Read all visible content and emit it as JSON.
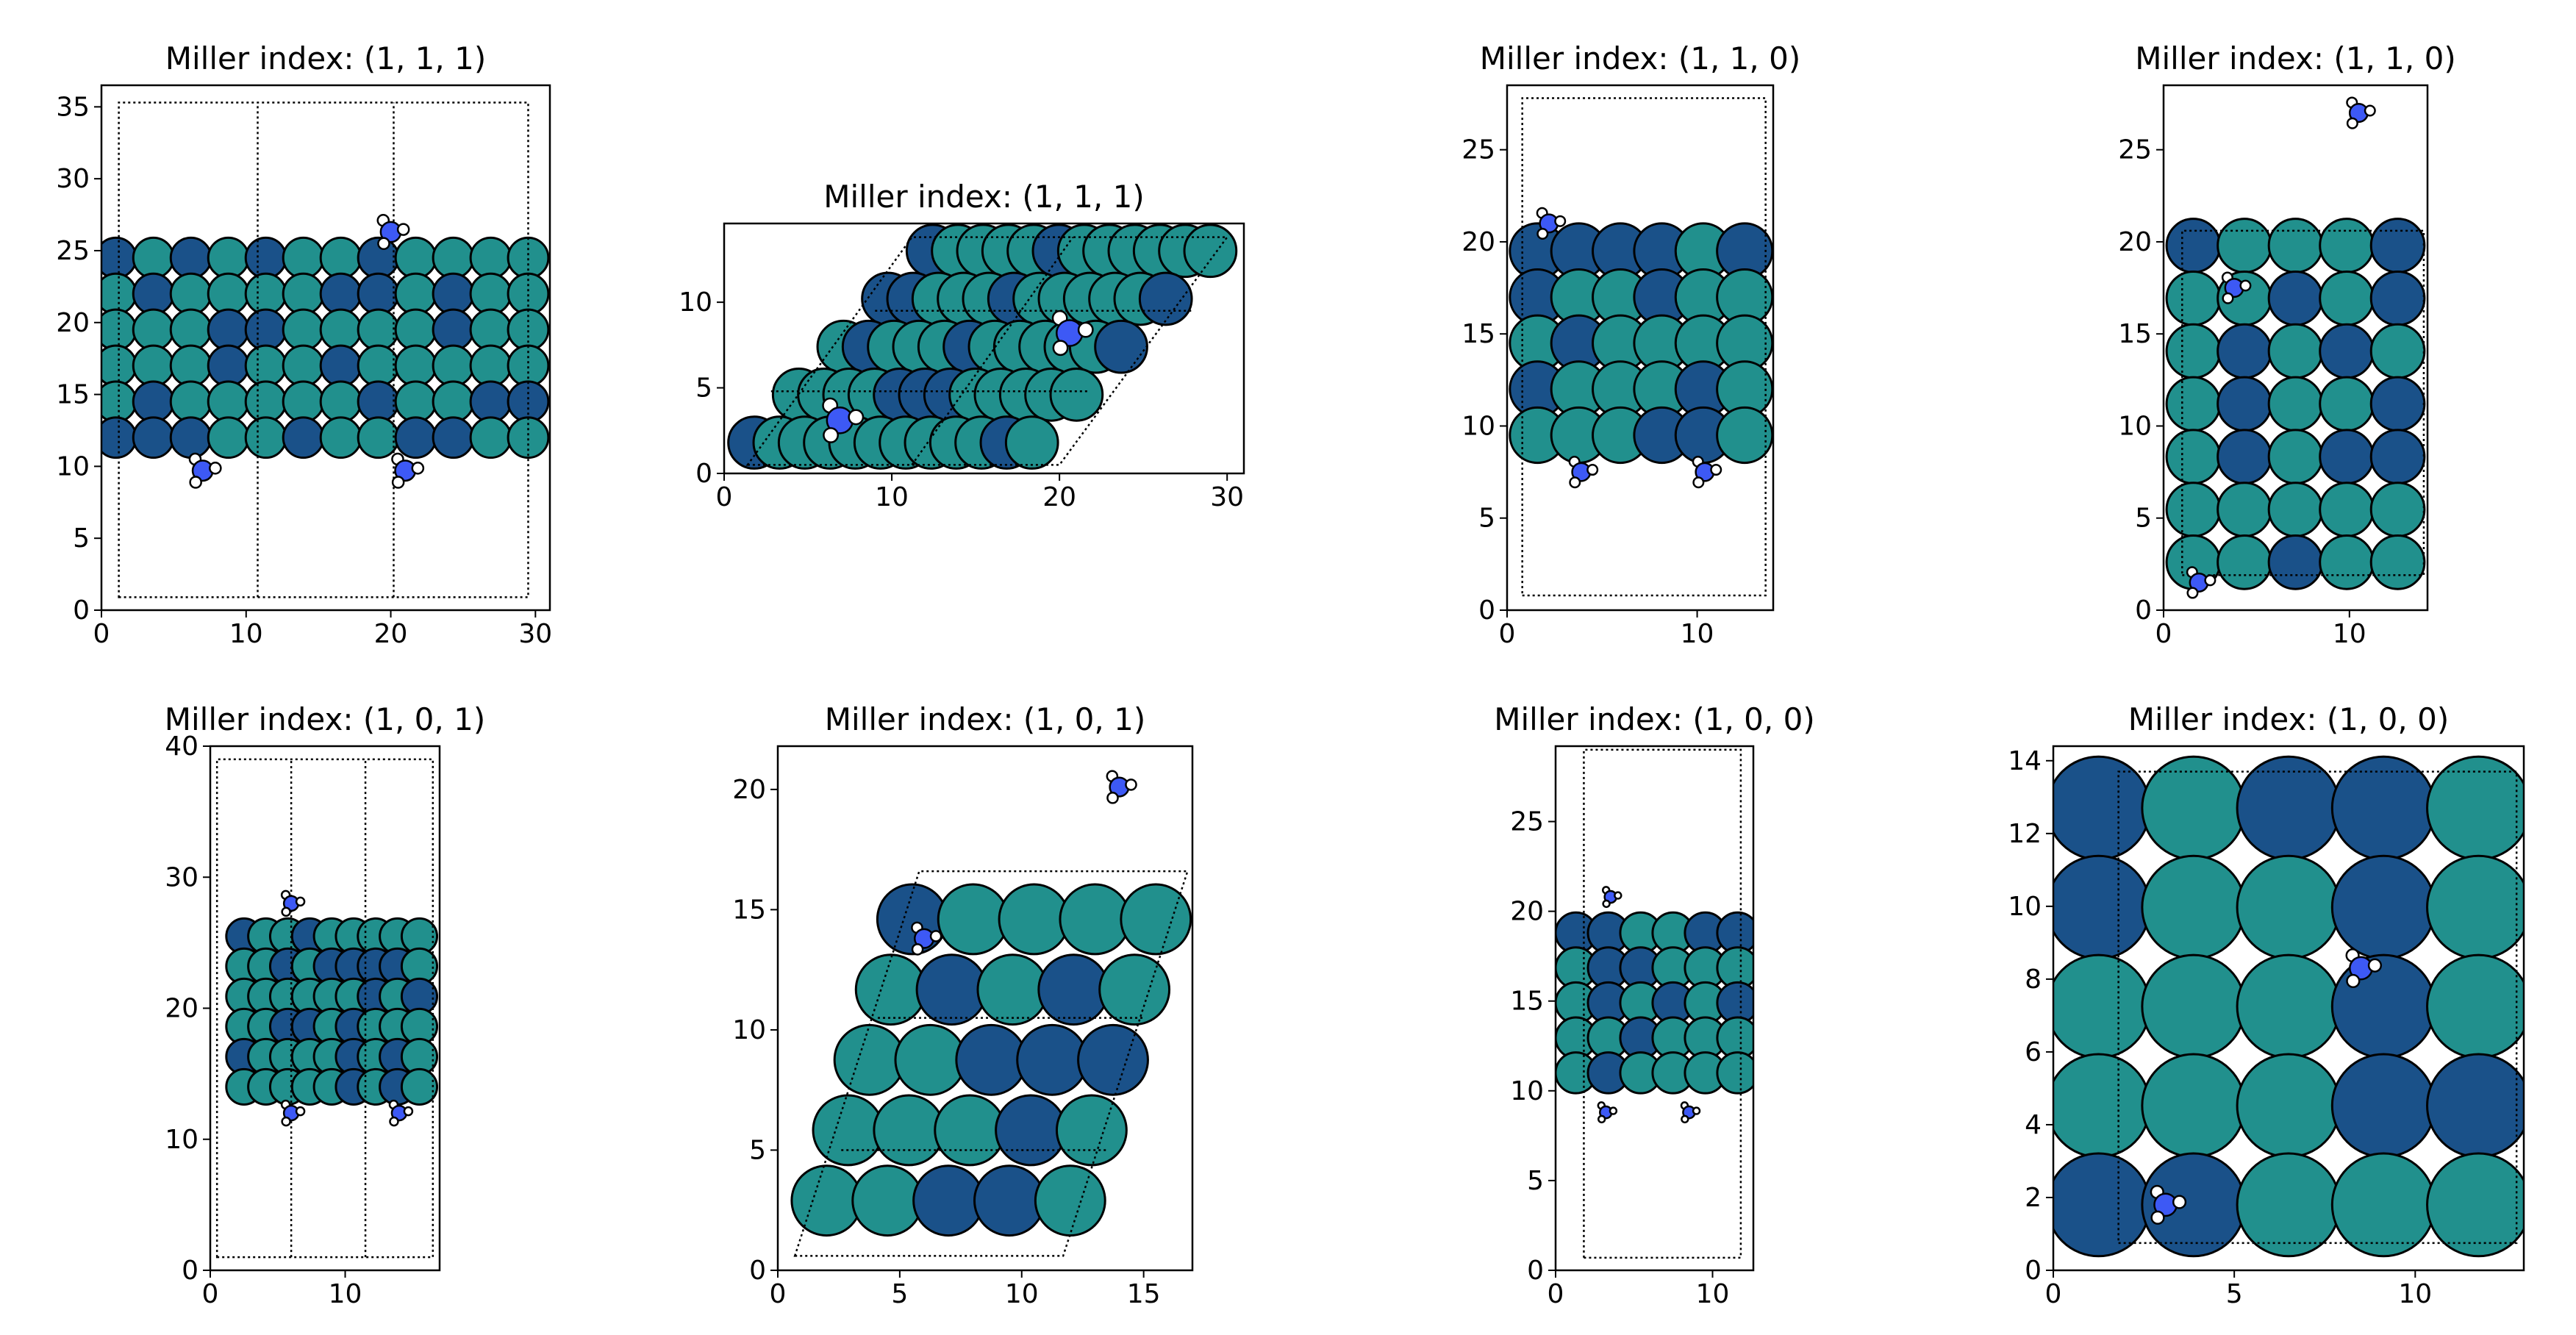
{
  "figure": {
    "colors": {
      "atom_dark": "#1a5189",
      "atom_teal": "#21908d",
      "atom_edge": "#000000",
      "n_atom": "#3d59f5",
      "h_atom": "#ffffff",
      "cell_line": "#000000"
    }
  },
  "chart_data": [
    {
      "type": "scatter",
      "title": "Miller index: (1, 1, 1)",
      "xlim": [
        0,
        31
      ],
      "ylim": [
        0,
        36.5
      ],
      "xticks": [
        0,
        10,
        20,
        30
      ],
      "yticks": [
        0,
        5,
        10,
        15,
        20,
        25,
        30,
        35
      ],
      "atom_radius": 1.4,
      "slab": {
        "x0": 1.0,
        "x1": 29.5,
        "y0": 12.0,
        "y1": 24.5,
        "cols": 12,
        "rows": 6
      },
      "cell": [
        [
          1.2,
          0.9
        ],
        [
          29.5,
          0.9
        ],
        [
          29.5,
          35.3
        ],
        [
          1.2,
          35.3
        ]
      ],
      "cell_lines": [
        [
          [
            10.8,
            0.9
          ],
          [
            10.8,
            35.3
          ]
        ],
        [
          [
            20.2,
            0.9
          ],
          [
            20.2,
            35.3
          ]
        ]
      ],
      "adsorbates": [
        [
          7.0,
          9.7
        ],
        [
          20.0,
          26.3
        ],
        [
          21.0,
          9.7
        ]
      ],
      "adsorbate_scale": 0.5
    },
    {
      "type": "scatter",
      "title": "Miller index: (1, 1, 1)",
      "xlim": [
        0,
        31
      ],
      "ylim": [
        0,
        14.6
      ],
      "xticks": [
        0,
        10,
        20,
        30
      ],
      "yticks": [
        0,
        5,
        10
      ],
      "atom_radius": 1.55,
      "slab": {
        "x0": 1.8,
        "x1": 29.0,
        "y0": 1.8,
        "y1": 13.0,
        "cols": 12,
        "rows": 5,
        "shear": 0.95
      },
      "cell": [
        [
          1.4,
          0.5
        ],
        [
          20.0,
          0.5
        ],
        [
          30.0,
          13.8
        ],
        [
          11.2,
          13.8
        ]
      ],
      "cell_lines": [
        [
          [
            11.2,
            0.5
          ],
          [
            20.8,
            13.8
          ]
        ],
        [
          [
            2.8,
            4.8
          ],
          [
            21.8,
            4.8
          ]
        ],
        [
          [
            9.0,
            9.5
          ],
          [
            28.0,
            9.5
          ]
        ]
      ],
      "adsorbates": [
        [
          6.9,
          3.1
        ],
        [
          20.6,
          8.2
        ]
      ],
      "adsorbate_scale": 0.55
    },
    {
      "type": "scatter",
      "title": "Miller index: (1, 1, 0)",
      "xlim": [
        0,
        14
      ],
      "ylim": [
        0,
        28.5
      ],
      "xticks": [
        0,
        10
      ],
      "yticks": [
        0,
        5,
        10,
        15,
        20,
        25
      ],
      "atom_radius": 1.5,
      "slab": {
        "x0": 1.6,
        "x1": 12.5,
        "y0": 9.5,
        "y1": 19.5,
        "cols": 6,
        "rows": 5
      },
      "cell": [
        [
          0.8,
          0.8
        ],
        [
          13.6,
          0.8
        ],
        [
          13.6,
          27.8
        ],
        [
          0.8,
          27.8
        ]
      ],
      "cell_lines": [],
      "adsorbates": [
        [
          2.2,
          21.0
        ],
        [
          3.9,
          7.5
        ],
        [
          10.4,
          7.5
        ]
      ],
      "adsorbate_scale": 0.35
    },
    {
      "type": "scatter",
      "title": "Miller index: (1, 1, 0)",
      "xlim": [
        0,
        14.2
      ],
      "ylim": [
        0,
        28.5
      ],
      "xticks": [
        0,
        10
      ],
      "yticks": [
        0,
        5,
        10,
        15,
        20,
        25
      ],
      "atom_radius": 1.45,
      "slab": {
        "x0": 1.6,
        "x1": 12.6,
        "y0": 2.6,
        "y1": 19.8,
        "cols": 5,
        "rows": 7
      },
      "cell": [
        [
          1.0,
          1.9
        ],
        [
          14.0,
          1.9
        ],
        [
          14.0,
          20.6
        ],
        [
          1.0,
          20.6
        ]
      ],
      "cell_lines": [],
      "adsorbates": [
        [
          10.5,
          27.0
        ],
        [
          3.8,
          17.5
        ],
        [
          1.9,
          1.5
        ]
      ],
      "adsorbate_scale": 0.35
    },
    {
      "type": "scatter",
      "title": "Miller index: (1, 0, 1)",
      "xlim": [
        0,
        17
      ],
      "ylim": [
        0,
        40
      ],
      "xticks": [
        0,
        10
      ],
      "yticks": [
        0,
        10,
        20,
        30,
        40
      ],
      "atom_radius": 1.35,
      "slab": {
        "x0": 2.5,
        "x1": 15.5,
        "y0": 14.0,
        "y1": 25.5,
        "cols": 9,
        "rows": 6
      },
      "cell": [
        [
          0.5,
          1.0
        ],
        [
          16.5,
          1.0
        ],
        [
          16.5,
          39.0
        ],
        [
          0.5,
          39.0
        ]
      ],
      "cell_lines": [
        [
          [
            6.0,
            1.0
          ],
          [
            6.0,
            39.0
          ]
        ],
        [
          [
            11.5,
            1.0
          ],
          [
            11.5,
            39.0
          ]
        ]
      ],
      "adsorbates": [
        [
          6.0,
          28.0
        ],
        [
          6.0,
          12.0
        ],
        [
          14.0,
          12.0
        ]
      ],
      "adsorbate_scale": 0.4
    },
    {
      "type": "scatter",
      "title": "Miller index: (1, 0, 1)",
      "xlim": [
        0,
        17
      ],
      "ylim": [
        0,
        21.8
      ],
      "xticks": [
        0,
        5,
        10,
        15
      ],
      "yticks": [
        0,
        5,
        10,
        15,
        20
      ],
      "atom_radius": 1.45,
      "slab": {
        "x0": 2.0,
        "x1": 15.5,
        "y0": 2.9,
        "y1": 14.6,
        "cols": 5,
        "rows": 5,
        "shear": 0.3
      },
      "cell": [
        [
          0.7,
          0.6
        ],
        [
          11.7,
          0.6
        ],
        [
          16.8,
          16.6
        ],
        [
          5.8,
          16.6
        ]
      ],
      "cell_lines": [
        [
          [
            2.6,
            5.0
          ],
          [
            13.5,
            5.0
          ]
        ],
        [
          [
            4.1,
            10.5
          ],
          [
            15.0,
            10.5
          ]
        ]
      ],
      "adsorbates": [
        [
          14.0,
          20.1
        ],
        [
          6.0,
          13.8
        ]
      ],
      "adsorbate_scale": 0.28
    },
    {
      "type": "scatter",
      "title": "Miller index: (1, 0, 0)",
      "xlim": [
        0,
        12.6
      ],
      "ylim": [
        0,
        29.2
      ],
      "xticks": [
        0,
        10
      ],
      "yticks": [
        0,
        5,
        10,
        15,
        20,
        25
      ],
      "atom_radius": 1.3,
      "slab": {
        "x0": 1.3,
        "x1": 11.6,
        "y0": 11.0,
        "y1": 18.8,
        "cols": 6,
        "rows": 5
      },
      "cell": [
        [
          1.8,
          0.7
        ],
        [
          11.8,
          0.7
        ],
        [
          11.8,
          29.0
        ],
        [
          1.8,
          29.0
        ]
      ],
      "cell_lines": [],
      "adsorbates": [
        [
          3.5,
          20.8
        ],
        [
          3.2,
          8.8
        ],
        [
          8.5,
          8.8
        ]
      ],
      "adsorbate_scale": 0.27
    },
    {
      "type": "scatter",
      "title": "Miller index: (1, 0, 0)",
      "xlim": [
        0,
        13
      ],
      "ylim": [
        0,
        14.4
      ],
      "xticks": [
        0,
        5,
        10
      ],
      "yticks": [
        0,
        2,
        4,
        6,
        8,
        10,
        12,
        14
      ],
      "atom_radius": 1.42,
      "slab": {
        "x0": 1.25,
        "x1": 11.75,
        "y0": 1.8,
        "y1": 12.7,
        "cols": 5,
        "rows": 5
      },
      "cell": [
        [
          1.8,
          0.75
        ],
        [
          12.8,
          0.75
        ],
        [
          12.8,
          13.7
        ],
        [
          1.8,
          13.7
        ]
      ],
      "cell_lines": [],
      "adsorbates": [
        [
          8.5,
          8.3
        ],
        [
          3.1,
          1.8
        ]
      ],
      "adsorbate_scale": 0.22
    }
  ]
}
